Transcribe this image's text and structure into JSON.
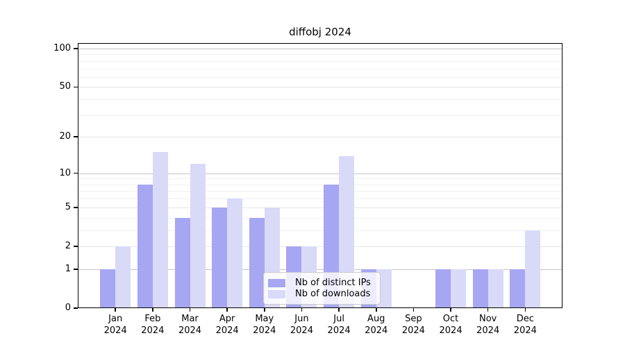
{
  "title": "diffobj 2024",
  "colors": {
    "bar_ips": "#a6a6f2",
    "bar_downloads": "#d9d9f8",
    "grid_major": "#c4c4c4",
    "grid_mid": "#e5e5e5",
    "grid_minor": "#f1f1f1",
    "axis": "#000000",
    "background": "#ffffff"
  },
  "legend": {
    "items": [
      {
        "label": "Nb of distinct IPs",
        "color": "#a6a6f2"
      },
      {
        "label": "Nb of downloads",
        "color": "#d9d9f8"
      }
    ]
  },
  "chart_data": {
    "type": "bar",
    "title": "diffobj 2024",
    "categories": [
      "Jan",
      "Feb",
      "Mar",
      "Apr",
      "May",
      "Jun",
      "Jul",
      "Aug",
      "Sep",
      "Oct",
      "Nov",
      "Dec"
    ],
    "x_year_label": "2024",
    "series": [
      {
        "name": "Nb of distinct IPs",
        "color": "#a6a6f2",
        "values": [
          1,
          8,
          4,
          5,
          4,
          2,
          8,
          1,
          0,
          1,
          1,
          1
        ]
      },
      {
        "name": "Nb of downloads",
        "color": "#d9d9f8",
        "values": [
          2,
          15,
          12,
          6,
          5,
          2,
          14,
          1,
          0,
          1,
          1,
          3
        ]
      }
    ],
    "xlabel": "",
    "ylabel": "",
    "yscale": "log1p",
    "ylim": [
      0,
      100
    ],
    "y_ticks": [
      0,
      1,
      2,
      5,
      10,
      20,
      50,
      100
    ],
    "y_grid_major": [
      1,
      10,
      100
    ],
    "y_grid_mid": [
      2,
      5,
      20,
      50
    ],
    "y_grid_minor": [
      3,
      4,
      6,
      7,
      8,
      9,
      30,
      40,
      60,
      70,
      80,
      90
    ],
    "grid": true,
    "legend_position": "bottom-center"
  }
}
